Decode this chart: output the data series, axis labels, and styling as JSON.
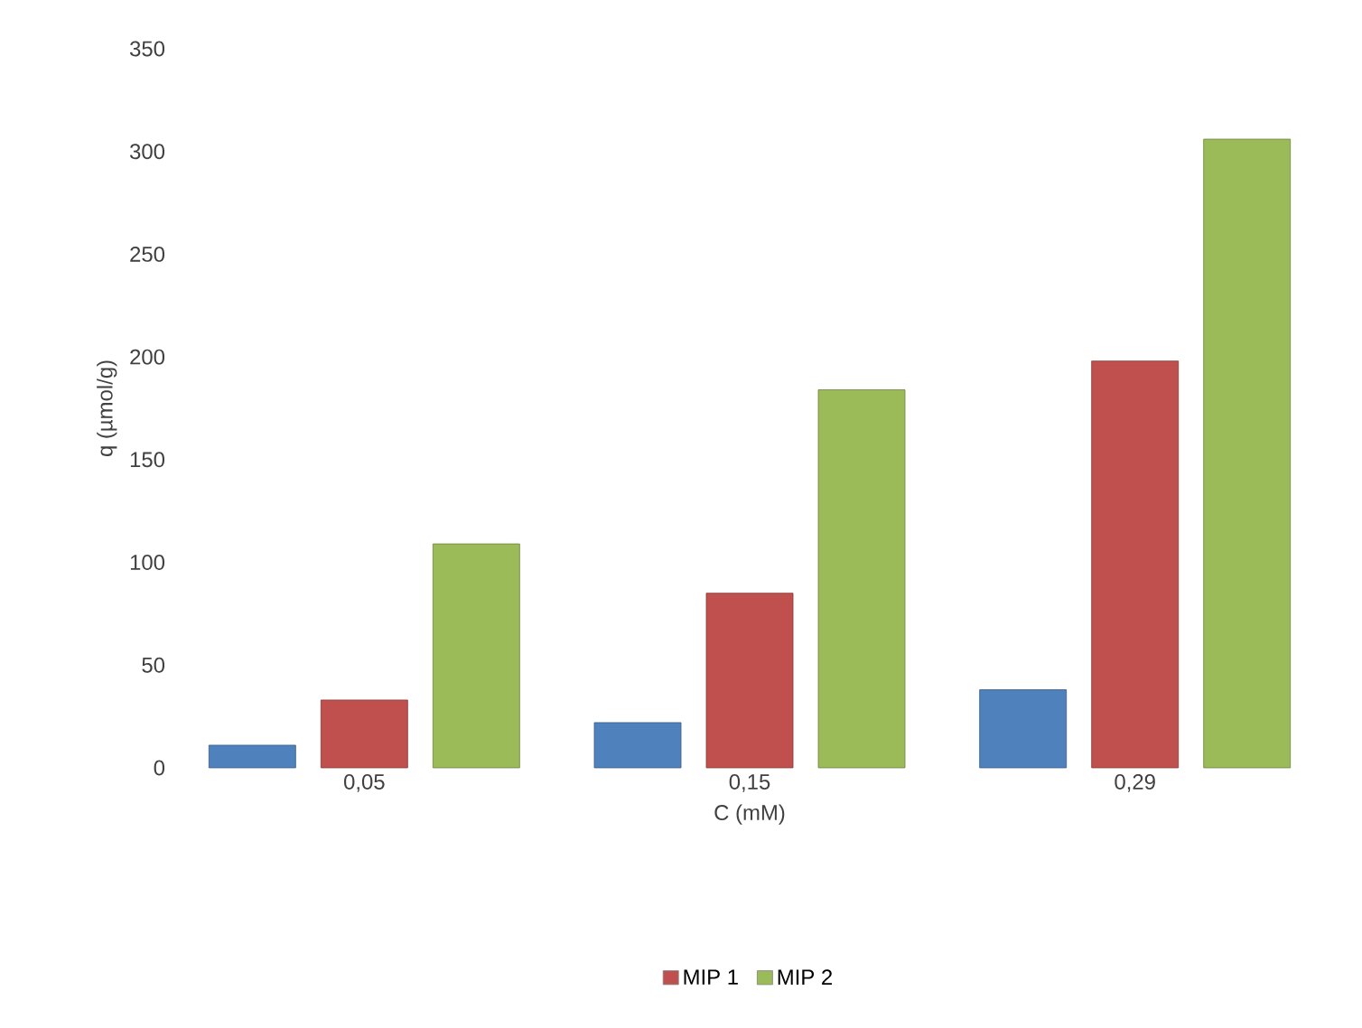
{
  "chart_data": {
    "type": "bar",
    "xlabel": "C (mM)",
    "ylabel": "q (µmol/g)",
    "categories": [
      "0,05",
      "0,15",
      "0,29"
    ],
    "series": [
      {
        "color": "#4f81bd",
        "values": [
          11,
          22,
          38
        ]
      },
      {
        "name": "MIP 1",
        "color": "#c0504d",
        "values": [
          33,
          85,
          198
        ]
      },
      {
        "name": "MIP 2",
        "color": "#9bbb59",
        "values": [
          109,
          184,
          306
        ]
      }
    ],
    "ylim": [
      0,
      350
    ],
    "yticks": [
      0,
      50,
      100,
      150,
      200,
      250,
      300,
      350
    ],
    "grid": false,
    "legend": "bottom"
  }
}
